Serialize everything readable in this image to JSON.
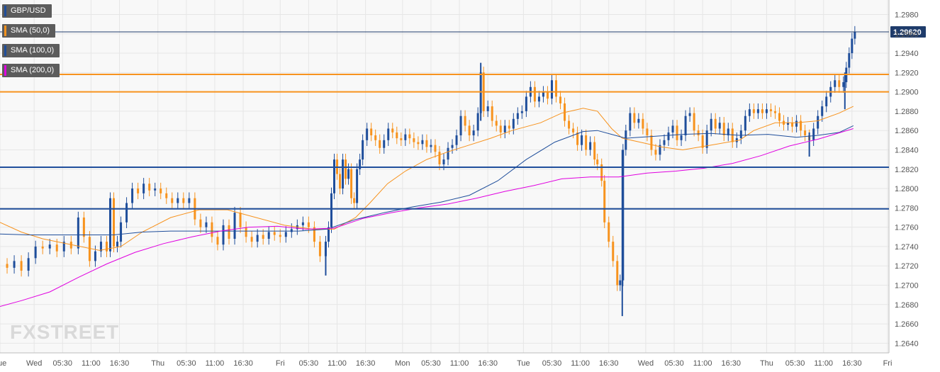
{
  "chart_data": {
    "type": "candlestick",
    "colors": {
      "bull": "#1f4e9b",
      "bear": "#f7931e",
      "sma50": "#f7931e",
      "sma100": "#1f4e9b",
      "sma200": "#e000e0",
      "resistance": "#f7931e",
      "support": "#1f4e9b",
      "price_line": "#1f3c6b",
      "price_label_bg": "#1f3c6b"
    },
    "legend": [
      {
        "label": "GBP/USD",
        "color": "#1f4e9b"
      },
      {
        "label": "SMA (50,0)",
        "color": "#f7931e"
      },
      {
        "label": "SMA (100,0)",
        "color": "#1f4e9b"
      },
      {
        "label": "SMA (200,0)",
        "color": "#e000e0"
      }
    ],
    "ylim": [
      1.263,
      1.2995
    ],
    "y_ticks": [
      "1.2640",
      "1.2660",
      "1.2680",
      "1.2700",
      "1.2720",
      "1.2740",
      "1.2760",
      "1.2780",
      "1.2800",
      "1.2820",
      "1.2840",
      "1.2860",
      "1.2880",
      "1.2900",
      "1.2920",
      "1.2940",
      "1.2960",
      "1.2980"
    ],
    "x_ticks": [
      {
        "pos": 0,
        "label": "Tue"
      },
      {
        "pos": 48,
        "label": "Wed"
      },
      {
        "pos": 88,
        "label": "05:30"
      },
      {
        "pos": 128,
        "label": "11:00"
      },
      {
        "pos": 168,
        "label": "16:30"
      },
      {
        "pos": 222,
        "label": "Thu"
      },
      {
        "pos": 262,
        "label": "05:30"
      },
      {
        "pos": 302,
        "label": "11:00"
      },
      {
        "pos": 342,
        "label": "16:30"
      },
      {
        "pos": 394,
        "label": "Fri"
      },
      {
        "pos": 434,
        "label": "05:30"
      },
      {
        "pos": 474,
        "label": "11:00"
      },
      {
        "pos": 514,
        "label": "16:30"
      },
      {
        "pos": 566,
        "label": "Mon"
      },
      {
        "pos": 606,
        "label": "05:30"
      },
      {
        "pos": 646,
        "label": "11:00"
      },
      {
        "pos": 686,
        "label": "16:30"
      },
      {
        "pos": 736,
        "label": "Tue"
      },
      {
        "pos": 776,
        "label": "05:30"
      },
      {
        "pos": 816,
        "label": "11:00"
      },
      {
        "pos": 856,
        "label": "16:30"
      },
      {
        "pos": 908,
        "label": "Wed"
      },
      {
        "pos": 948,
        "label": "05:30"
      },
      {
        "pos": 988,
        "label": "11:00"
      },
      {
        "pos": 1028,
        "label": "16:30"
      },
      {
        "pos": 1078,
        "label": "Thu"
      },
      {
        "pos": 1118,
        "label": "05:30"
      },
      {
        "pos": 1158,
        "label": "11:00"
      },
      {
        "pos": 1198,
        "label": "16:30"
      },
      {
        "pos": 1248,
        "label": "Fri"
      }
    ],
    "x_range": [
      0,
      1250
    ],
    "horizontal_levels": [
      {
        "name": "resistance-line",
        "value": 1.2918,
        "kind": "resistance"
      },
      {
        "name": "resistance-line",
        "value": 1.29,
        "kind": "resistance"
      },
      {
        "name": "support-line",
        "value": 1.2822,
        "kind": "support"
      },
      {
        "name": "support-line",
        "value": 1.2779,
        "kind": "support"
      }
    ],
    "current_price": {
      "value": 1.2962,
      "label": "1.29620"
    },
    "sma_series": [
      {
        "name": "SMA (50,0)",
        "color": "#f7931e",
        "points": [
          [
            0,
            1.2765
          ],
          [
            30,
            1.2755
          ],
          [
            60,
            1.2748
          ],
          [
            100,
            1.2742
          ],
          [
            140,
            1.2736
          ],
          [
            170,
            1.274
          ],
          [
            200,
            1.2755
          ],
          [
            240,
            1.277
          ],
          [
            280,
            1.2778
          ],
          [
            320,
            1.2778
          ],
          [
            360,
            1.277
          ],
          [
            400,
            1.2762
          ],
          [
            440,
            1.2758
          ],
          [
            470,
            1.2758
          ],
          [
            500,
            1.277
          ],
          [
            520,
            1.2785
          ],
          [
            545,
            1.2805
          ],
          [
            570,
            1.2818
          ],
          [
            600,
            1.283
          ],
          [
            630,
            1.2838
          ],
          [
            660,
            1.2845
          ],
          [
            690,
            1.2852
          ],
          [
            720,
            1.286
          ],
          [
            760,
            1.2868
          ],
          [
            790,
            1.2878
          ],
          [
            820,
            1.2883
          ],
          [
            840,
            1.288
          ],
          [
            860,
            1.2862
          ],
          [
            875,
            1.2852
          ],
          [
            900,
            1.2848
          ],
          [
            930,
            1.2843
          ],
          [
            960,
            1.284
          ],
          [
            1000,
            1.2845
          ],
          [
            1040,
            1.285
          ],
          [
            1060,
            1.286
          ],
          [
            1090,
            1.2868
          ],
          [
            1120,
            1.2868
          ],
          [
            1150,
            1.287
          ],
          [
            1180,
            1.2878
          ],
          [
            1200,
            1.2885
          ]
        ]
      },
      {
        "name": "SMA (100,0)",
        "color": "#1f4e9b",
        "points": [
          [
            0,
            1.2753
          ],
          [
            40,
            1.2752
          ],
          [
            100,
            1.2752
          ],
          [
            160,
            1.2752
          ],
          [
            200,
            1.2755
          ],
          [
            240,
            1.2756
          ],
          [
            300,
            1.2756
          ],
          [
            360,
            1.2756
          ],
          [
            420,
            1.2756
          ],
          [
            460,
            1.2758
          ],
          [
            500,
            1.2768
          ],
          [
            540,
            1.2775
          ],
          [
            580,
            1.2781
          ],
          [
            620,
            1.2786
          ],
          [
            660,
            1.2793
          ],
          [
            700,
            1.2808
          ],
          [
            740,
            1.283
          ],
          [
            780,
            1.2848
          ],
          [
            820,
            1.2859
          ],
          [
            840,
            1.286
          ],
          [
            860,
            1.2856
          ],
          [
            880,
            1.2852
          ],
          [
            920,
            1.2854
          ],
          [
            960,
            1.2856
          ],
          [
            1000,
            1.2857
          ],
          [
            1040,
            1.2855
          ],
          [
            1080,
            1.2856
          ],
          [
            1120,
            1.2853
          ],
          [
            1150,
            1.2855
          ],
          [
            1180,
            1.2858
          ],
          [
            1200,
            1.2865
          ]
        ]
      },
      {
        "name": "SMA (200,0)",
        "color": "#e000e0",
        "points": [
          [
            0,
            1.2678
          ],
          [
            30,
            1.2684
          ],
          [
            70,
            1.2693
          ],
          [
            110,
            1.2708
          ],
          [
            150,
            1.2722
          ],
          [
            190,
            1.2734
          ],
          [
            230,
            1.2743
          ],
          [
            270,
            1.275
          ],
          [
            310,
            1.2756
          ],
          [
            350,
            1.276
          ],
          [
            390,
            1.2761
          ],
          [
            430,
            1.2758
          ],
          [
            470,
            1.2759
          ],
          [
            510,
            1.2769
          ],
          [
            550,
            1.2775
          ],
          [
            590,
            1.278
          ],
          [
            630,
            1.2784
          ],
          [
            670,
            1.279
          ],
          [
            710,
            1.2797
          ],
          [
            750,
            1.2803
          ],
          [
            790,
            1.281
          ],
          [
            830,
            1.2812
          ],
          [
            870,
            1.2812
          ],
          [
            910,
            1.2816
          ],
          [
            950,
            1.2818
          ],
          [
            990,
            1.2821
          ],
          [
            1030,
            1.2826
          ],
          [
            1070,
            1.2834
          ],
          [
            1110,
            1.2844
          ],
          [
            1150,
            1.2851
          ],
          [
            1200,
            1.2862
          ]
        ]
      }
    ],
    "price_path": [
      [
        0,
        1.2722
      ],
      [
        10,
        1.2718
      ],
      [
        20,
        1.2725
      ],
      [
        30,
        1.2715
      ],
      [
        40,
        1.2728
      ],
      [
        50,
        1.274
      ],
      [
        60,
        1.2738
      ],
      [
        70,
        1.2742
      ],
      [
        80,
        1.2735
      ],
      [
        90,
        1.2745
      ],
      [
        100,
        1.2738
      ],
      [
        110,
        1.277
      ],
      [
        118,
        1.275
      ],
      [
        126,
        1.2725
      ],
      [
        134,
        1.2735
      ],
      [
        142,
        1.2745
      ],
      [
        150,
        1.2735
      ],
      [
        155,
        1.279
      ],
      [
        160,
        1.274
      ],
      [
        165,
        1.2745
      ],
      [
        170,
        1.2765
      ],
      [
        178,
        1.2785
      ],
      [
        186,
        1.28
      ],
      [
        194,
        1.2795
      ],
      [
        202,
        1.2805
      ],
      [
        210,
        1.2798
      ],
      [
        218,
        1.28
      ],
      [
        226,
        1.2795
      ],
      [
        234,
        1.279
      ],
      [
        242,
        1.2785
      ],
      [
        250,
        1.279
      ],
      [
        258,
        1.2785
      ],
      [
        266,
        1.279
      ],
      [
        274,
        1.2768
      ],
      [
        282,
        1.276
      ],
      [
        290,
        1.2765
      ],
      [
        298,
        1.275
      ],
      [
        306,
        1.2742
      ],
      [
        314,
        1.2762
      ],
      [
        322,
        1.2748
      ],
      [
        330,
        1.2775
      ],
      [
        338,
        1.276
      ],
      [
        346,
        1.275
      ],
      [
        354,
        1.2745
      ],
      [
        362,
        1.2752
      ],
      [
        370,
        1.2748
      ],
      [
        378,
        1.2755
      ],
      [
        386,
        1.2752
      ],
      [
        394,
        1.275
      ],
      [
        402,
        1.2755
      ],
      [
        410,
        1.2758
      ],
      [
        418,
        1.2762
      ],
      [
        426,
        1.2765
      ],
      [
        434,
        1.276
      ],
      [
        442,
        1.2745
      ],
      [
        450,
        1.273
      ],
      [
        458,
        1.2745
      ],
      [
        462,
        1.276
      ],
      [
        466,
        1.2795
      ],
      [
        470,
        1.283
      ],
      [
        474,
        1.2815
      ],
      [
        478,
        1.28
      ],
      [
        482,
        1.283
      ],
      [
        486,
        1.281
      ],
      [
        490,
        1.282
      ],
      [
        494,
        1.279
      ],
      [
        498,
        1.2785
      ],
      [
        502,
        1.282
      ],
      [
        506,
        1.283
      ],
      [
        510,
        1.285
      ],
      [
        516,
        1.2862
      ],
      [
        522,
        1.2855
      ],
      [
        528,
        1.285
      ],
      [
        534,
        1.2842
      ],
      [
        540,
        1.285
      ],
      [
        546,
        1.2862
      ],
      [
        552,
        1.2858
      ],
      [
        558,
        1.2852
      ],
      [
        564,
        1.285
      ],
      [
        570,
        1.2856
      ],
      [
        576,
        1.2852
      ],
      [
        582,
        1.2848
      ],
      [
        588,
        1.2846
      ],
      [
        594,
        1.285
      ],
      [
        600,
        1.2843
      ],
      [
        606,
        1.2845
      ],
      [
        612,
        1.2838
      ],
      [
        618,
        1.2825
      ],
      [
        624,
        1.283
      ],
      [
        630,
        1.2842
      ],
      [
        636,
        1.2845
      ],
      [
        642,
        1.2855
      ],
      [
        648,
        1.2875
      ],
      [
        654,
        1.2865
      ],
      [
        660,
        1.2855
      ],
      [
        666,
        1.286
      ],
      [
        672,
        1.2878
      ],
      [
        676,
        1.292
      ],
      [
        680,
        1.288
      ],
      [
        686,
        1.2885
      ],
      [
        692,
        1.287
      ],
      [
        698,
        1.2865
      ],
      [
        704,
        1.2858
      ],
      [
        710,
        1.2865
      ],
      [
        716,
        1.2862
      ],
      [
        722,
        1.2872
      ],
      [
        728,
        1.2878
      ],
      [
        734,
        1.288
      ],
      [
        740,
        1.2895
      ],
      [
        746,
        1.2905
      ],
      [
        752,
        1.289
      ],
      [
        758,
        1.2895
      ],
      [
        764,
        1.29
      ],
      [
        770,
        1.2893
      ],
      [
        776,
        1.2912
      ],
      [
        782,
        1.2895
      ],
      [
        788,
        1.2888
      ],
      [
        794,
        1.287
      ],
      [
        800,
        1.2862
      ],
      [
        806,
        1.2858
      ],
      [
        812,
        1.2845
      ],
      [
        818,
        1.2855
      ],
      [
        824,
        1.284
      ],
      [
        830,
        1.2848
      ],
      [
        836,
        1.283
      ],
      [
        840,
        1.2825
      ],
      [
        846,
        1.2808
      ],
      [
        850,
        1.2765
      ],
      [
        856,
        1.2745
      ],
      [
        862,
        1.2725
      ],
      [
        868,
        1.27
      ],
      [
        872,
        1.2705
      ],
      [
        876,
        1.284
      ],
      [
        880,
        1.286
      ],
      [
        886,
        1.2878
      ],
      [
        892,
        1.2868
      ],
      [
        898,
        1.2872
      ],
      [
        904,
        1.2862
      ],
      [
        910,
        1.2855
      ],
      [
        916,
        1.284
      ],
      [
        922,
        1.2835
      ],
      [
        928,
        1.2845
      ],
      [
        934,
        1.285
      ],
      [
        940,
        1.2858
      ],
      [
        946,
        1.2865
      ],
      [
        952,
        1.285
      ],
      [
        958,
        1.2855
      ],
      [
        964,
        1.2875
      ],
      [
        970,
        1.2878
      ],
      [
        976,
        1.286
      ],
      [
        982,
        1.2855
      ],
      [
        988,
        1.2842
      ],
      [
        994,
        1.286
      ],
      [
        1000,
        1.2872
      ],
      [
        1006,
        1.2862
      ],
      [
        1012,
        1.2868
      ],
      [
        1018,
        1.2855
      ],
      [
        1024,
        1.2862
      ],
      [
        1030,
        1.2848
      ],
      [
        1036,
        1.2852
      ],
      [
        1042,
        1.286
      ],
      [
        1048,
        1.2875
      ],
      [
        1054,
        1.2882
      ],
      [
        1060,
        1.2878
      ],
      [
        1066,
        1.2882
      ],
      [
        1072,
        1.2878
      ],
      [
        1078,
        1.2882
      ],
      [
        1084,
        1.288
      ],
      [
        1090,
        1.2878
      ],
      [
        1096,
        1.287
      ],
      [
        1102,
        1.2866
      ],
      [
        1108,
        1.2868
      ],
      [
        1114,
        1.2864
      ],
      [
        1120,
        1.287
      ],
      [
        1126,
        1.286
      ],
      [
        1132,
        1.2855
      ],
      [
        1138,
        1.285
      ],
      [
        1144,
        1.2862
      ],
      [
        1150,
        1.2875
      ],
      [
        1156,
        1.2885
      ],
      [
        1162,
        1.2895
      ],
      [
        1168,
        1.2905
      ],
      [
        1174,
        1.2912
      ],
      [
        1180,
        1.2905
      ],
      [
        1186,
        1.291
      ],
      [
        1190,
        1.2925
      ],
      [
        1194,
        1.294
      ],
      [
        1198,
        1.2955
      ],
      [
        1202,
        1.2962
      ]
    ],
    "wicks": [
      {
        "pos": 875,
        "low": 1.2668,
        "high": 1.284
      },
      {
        "pos": 676,
        "low": 1.287,
        "high": 1.293
      },
      {
        "pos": 458,
        "low": 1.271,
        "high": 1.2745
      },
      {
        "pos": 1138,
        "low": 1.2833,
        "high": 1.2858
      },
      {
        "pos": 1188,
        "low": 1.2882,
        "high": 1.292
      }
    ],
    "watermark": "FXSTREET"
  }
}
